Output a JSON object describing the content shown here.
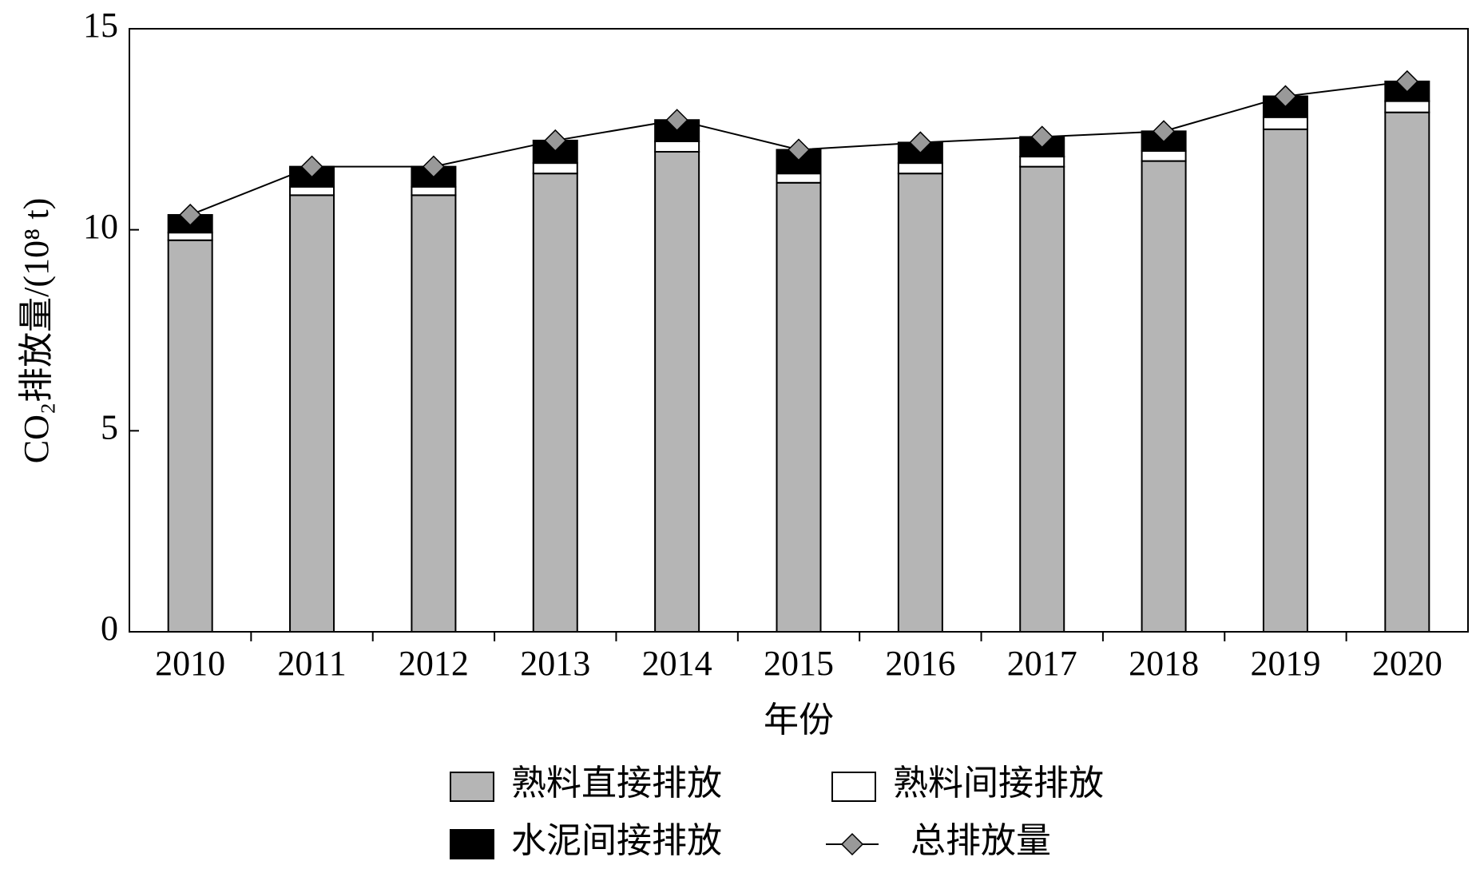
{
  "chart_data": {
    "type": "bar",
    "stacked": true,
    "x_label": "年份",
    "y_label": "CO₂排放量/(10⁸ t)",
    "categories": [
      "2010",
      "2011",
      "2012",
      "2013",
      "2014",
      "2015",
      "2016",
      "2017",
      "2018",
      "2019",
      "2020"
    ],
    "series": [
      {
        "name": "熟料直接排放",
        "type": "bar",
        "color": "#b5b5b5",
        "values": [
          9.74,
          10.86,
          10.86,
          11.4,
          11.94,
          11.17,
          11.4,
          11.57,
          11.71,
          12.5,
          12.92
        ]
      },
      {
        "name": "熟料间接排放",
        "type": "bar",
        "color": "#ffffff",
        "values": [
          0.19,
          0.21,
          0.21,
          0.26,
          0.26,
          0.23,
          0.26,
          0.25,
          0.25,
          0.3,
          0.28
        ]
      },
      {
        "name": "水泥间接排放",
        "type": "bar",
        "color": "#000000",
        "values": [
          0.44,
          0.5,
          0.5,
          0.56,
          0.53,
          0.59,
          0.51,
          0.49,
          0.49,
          0.52,
          0.49
        ]
      },
      {
        "name": "总排放量",
        "type": "line",
        "color": "#999999",
        "values": [
          10.37,
          11.57,
          11.57,
          12.22,
          12.73,
          11.99,
          12.17,
          12.31,
          12.45,
          13.32,
          13.69
        ]
      }
    ],
    "ylim": [
      0,
      15
    ],
    "yticks": [
      0,
      5,
      10,
      15
    ],
    "grid": false
  }
}
